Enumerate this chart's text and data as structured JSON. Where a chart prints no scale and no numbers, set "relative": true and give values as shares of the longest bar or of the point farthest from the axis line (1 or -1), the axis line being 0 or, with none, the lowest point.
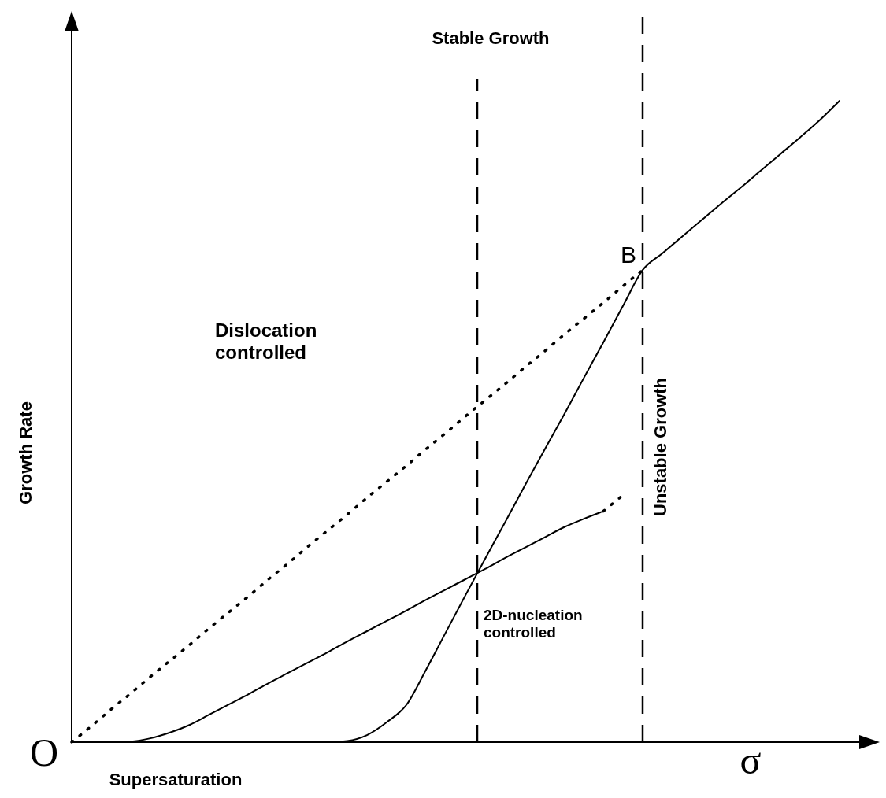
{
  "chart_data": {
    "type": "line",
    "relative": true,
    "xlabel": "Supersaturation",
    "ylabel": "Growth Rate",
    "categories": [
      null,
      null,
      null,
      null,
      null,
      null,
      null,
      null,
      null,
      null,
      null,
      null,
      null,
      null,
      null,
      null,
      null,
      null,
      null,
      null,
      null,
      null,
      null,
      null,
      null,
      null,
      null,
      null,
      null,
      null,
      null,
      null,
      null,
      null,
      null,
      null,
      null,
      null,
      null,
      null
    ],
    "series": [
      {
        "color": "#000000",
        "line_style": "dotted",
        "values": [
          0,
          0.025,
          0.051,
          0.076,
          0.102,
          0.127,
          0.152,
          0.178,
          0.203,
          0.228,
          0.254,
          0.279,
          0.305,
          0.33,
          0.355,
          0.381,
          0.406,
          0.431,
          0.457,
          0.482,
          0.508,
          0.533,
          0.558,
          0.584,
          0.609,
          0.635,
          0.66,
          0.685,
          0.711,
          0.736,
          null,
          null,
          null,
          null,
          null,
          null,
          null,
          null,
          null,
          null
        ]
      },
      {
        "color": "#000000",
        "line_style": "solid",
        "values": [
          0,
          0,
          0,
          0.001,
          0.006,
          0.015,
          0.027,
          0.043,
          0.059,
          0.075,
          0.092,
          0.108,
          0.124,
          0.14,
          0.157,
          0.173,
          0.189,
          0.205,
          0.222,
          0.238,
          0.254,
          0.27,
          0.287,
          0.303,
          0.319,
          0.335,
          0.348,
          0.36,
          null,
          null,
          null,
          null,
          null,
          null,
          null,
          null,
          null,
          null,
          null,
          null
        ]
      },
      {
        "color": "#000000",
        "line_style": "dotted",
        "values": [
          null,
          null,
          null,
          null,
          null,
          null,
          null,
          null,
          null,
          null,
          null,
          null,
          null,
          null,
          null,
          null,
          null,
          null,
          null,
          null,
          null,
          null,
          null,
          null,
          null,
          null,
          null,
          0.36,
          0.385,
          null,
          null,
          null,
          null,
          null,
          null,
          null,
          null,
          null,
          null,
          null
        ]
      },
      {
        "color": "#000000",
        "line_style": "solid",
        "values": [
          0,
          0,
          0,
          0,
          0,
          0,
          0,
          0,
          0,
          0,
          0,
          0,
          0,
          0,
          0.002,
          0.011,
          0.031,
          0.058,
          0.113,
          0.171,
          0.229,
          0.286,
          0.342,
          0.399,
          0.455,
          0.51,
          0.567,
          0.623,
          0.68,
          0.736,
          0.762,
          0.788,
          0.814,
          0.84,
          0.865,
          0.891,
          0.917,
          0.943,
          0.97,
          1
        ]
      }
    ],
    "annotations": [
      "Stable Growth",
      "Unstable Growth",
      "Dislocation controlled",
      "2D-nucleation controlled",
      "B",
      "O",
      "σ"
    ]
  }
}
